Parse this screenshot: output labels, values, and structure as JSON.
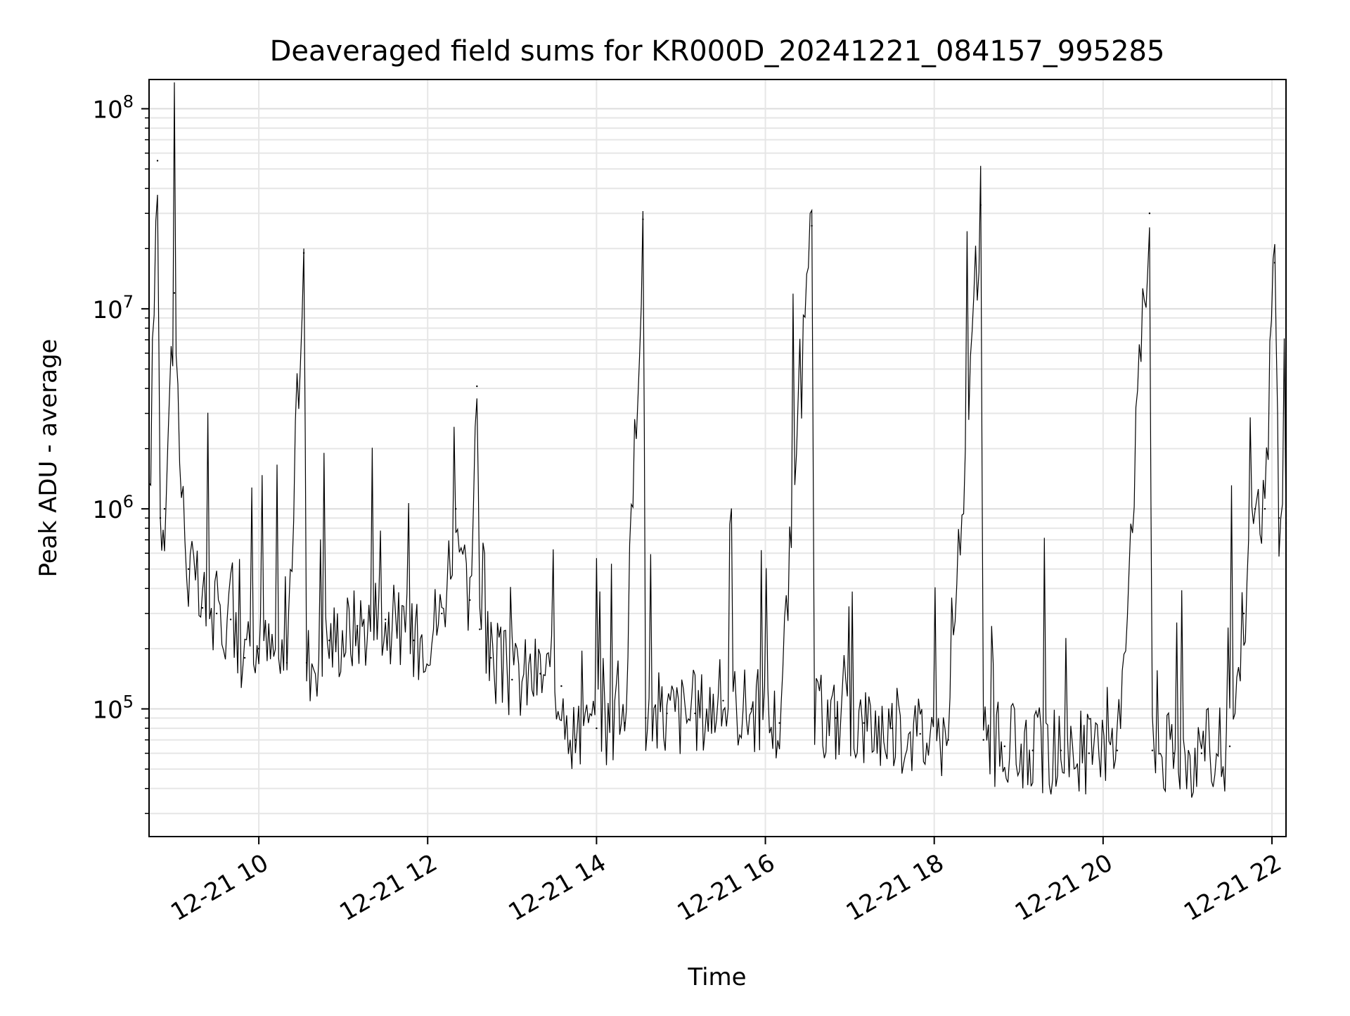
{
  "chart_data": {
    "type": "line",
    "title": "Deaveraged field sums for KR000D_20241221_084157_995285",
    "xlabel": "Time",
    "ylabel": "Peak ADU - average",
    "xscale": "time",
    "yscale": "log",
    "xlim": [
      "2024-12-21T08:42",
      "2024-12-21T22:10"
    ],
    "ylim": [
      23000,
      140000000
    ],
    "grid": true,
    "legend": "none",
    "line_color": "#000000",
    "x_ticks": [
      {
        "value": "2024-12-21T10:00",
        "label": "12-21 10"
      },
      {
        "value": "2024-12-21T12:00",
        "label": "12-21 12"
      },
      {
        "value": "2024-12-21T14:00",
        "label": "12-21 14"
      },
      {
        "value": "2024-12-21T16:00",
        "label": "12-21 16"
      },
      {
        "value": "2024-12-21T18:00",
        "label": "12-21 18"
      },
      {
        "value": "2024-12-21T20:00",
        "label": "12-21 20"
      },
      {
        "value": "2024-12-21T22:00",
        "label": "12-21 22"
      }
    ],
    "y_ticks": [
      {
        "value": 100000,
        "base": "10",
        "exp": "5"
      },
      {
        "value": 1000000,
        "base": "10",
        "exp": "6"
      },
      {
        "value": 10000000,
        "base": "10",
        "exp": "7"
      },
      {
        "value": 100000000,
        "base": "10",
        "exp": "8"
      }
    ],
    "series": [
      {
        "x": [
          "2024-12-21T08:42",
          "2024-12-21T08:48",
          "2024-12-21T08:50",
          "2024-12-21T08:53",
          "2024-12-21T09:00",
          "2024-12-21T09:05",
          "2024-12-21T09:10",
          "2024-12-21T09:20",
          "2024-12-21T09:30",
          "2024-12-21T09:40",
          "2024-12-21T09:50",
          "2024-12-21T10:00",
          "2024-12-21T10:20",
          "2024-12-21T10:32",
          "2024-12-21T10:34",
          "2024-12-21T10:50",
          "2024-12-21T11:10",
          "2024-12-21T11:30",
          "2024-12-21T11:50",
          "2024-12-21T12:10",
          "2024-12-21T12:20",
          "2024-12-21T12:30",
          "2024-12-21T12:35",
          "2024-12-21T12:37",
          "2024-12-21T12:45",
          "2024-12-21T13:00",
          "2024-12-21T13:20",
          "2024-12-21T13:35",
          "2024-12-21T13:45",
          "2024-12-21T14:00",
          "2024-12-21T14:20",
          "2024-12-21T14:33",
          "2024-12-21T14:35",
          "2024-12-21T14:50",
          "2024-12-21T15:10",
          "2024-12-21T15:30",
          "2024-12-21T15:50",
          "2024-12-21T16:10",
          "2024-12-21T16:33",
          "2024-12-21T16:35",
          "2024-12-21T16:50",
          "2024-12-21T17:10",
          "2024-12-21T17:30",
          "2024-12-21T17:50",
          "2024-12-21T18:10",
          "2024-12-21T18:33",
          "2024-12-21T18:35",
          "2024-12-21T18:50",
          "2024-12-21T19:10",
          "2024-12-21T19:30",
          "2024-12-21T19:50",
          "2024-12-21T20:10",
          "2024-12-21T20:33",
          "2024-12-21T20:35",
          "2024-12-21T20:50",
          "2024-12-21T21:10",
          "2024-12-21T21:30",
          "2024-12-21T21:40",
          "2024-12-21T21:48",
          "2024-12-21T21:55",
          "2024-12-21T22:02",
          "2024-12-21T22:05",
          "2024-12-21T22:10"
        ],
        "y": [
          900000,
          55000000,
          900000,
          1000000,
          12000000,
          1200000,
          500000,
          320000,
          300000,
          280000,
          180000,
          200000,
          170000,
          19000000,
          170000,
          220000,
          260000,
          280000,
          220000,
          300000,
          1000000,
          350000,
          4100000,
          250000,
          180000,
          140000,
          150000,
          130000,
          70000,
          80000,
          85000,
          28000000,
          90000,
          95000,
          95000,
          110000,
          100000,
          85000,
          26000000,
          90000,
          90000,
          85000,
          80000,
          75000,
          70000,
          33000000,
          70000,
          65000,
          62000,
          62000,
          60000,
          62000,
          30000000,
          62000,
          60000,
          60000,
          65000,
          300000,
          1000000,
          1000000,
          17000000,
          900000,
          850000
        ]
      }
    ]
  }
}
